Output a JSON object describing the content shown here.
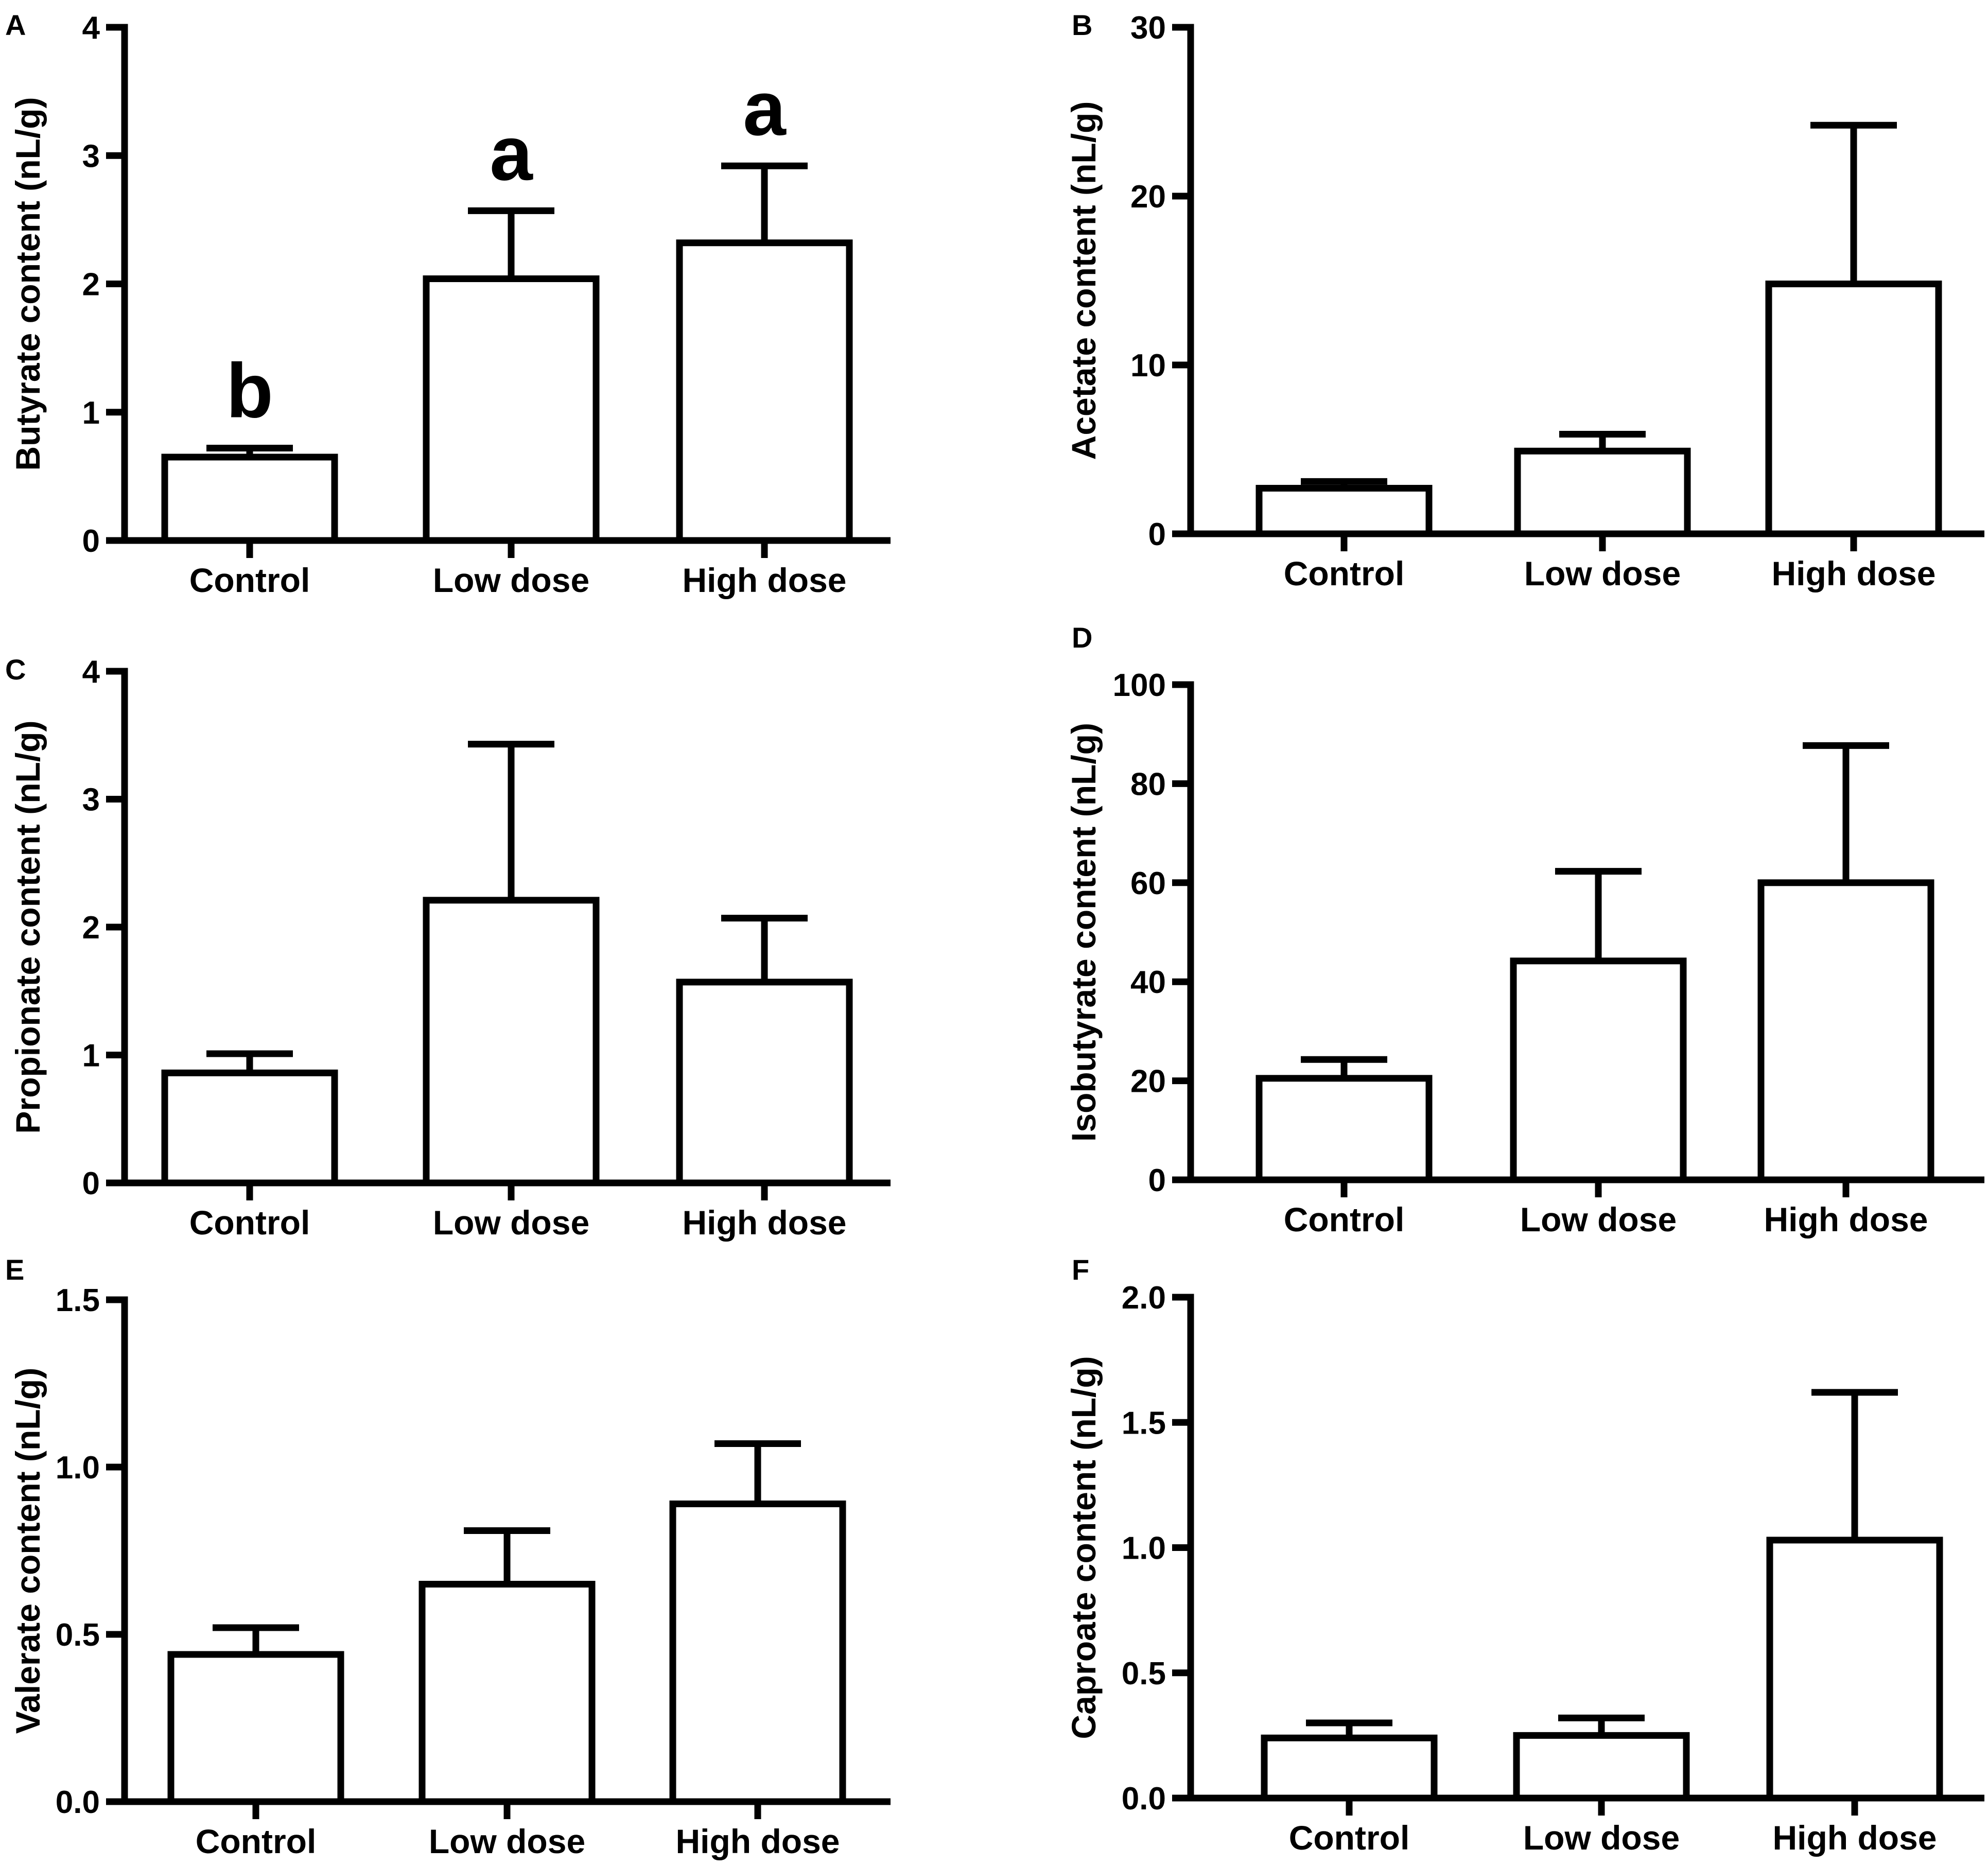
{
  "figure": {
    "panels": [
      "A",
      "B",
      "C",
      "D",
      "E",
      "F"
    ]
  },
  "chart_data": [
    {
      "panel": "A",
      "type": "bar",
      "categories": [
        "Control",
        "Low dose",
        "High dose"
      ],
      "values": [
        0.65,
        2.04,
        2.32
      ],
      "errors": [
        0.07,
        0.53,
        0.6
      ],
      "significance": [
        "b",
        "a",
        "a"
      ],
      "ylabel": "Butyrate content (nL/g)",
      "ylim": [
        0,
        4
      ],
      "yticks": [
        0,
        1,
        2,
        3,
        4
      ],
      "ytick_labels": [
        "0",
        "1",
        "2",
        "3",
        "4"
      ]
    },
    {
      "panel": "B",
      "type": "bar",
      "categories": [
        "Control",
        "Low dose",
        "High dose"
      ],
      "values": [
        2.7,
        4.9,
        14.8
      ],
      "errors": [
        0.4,
        1.0,
        9.4
      ],
      "ylabel": "Acetate content (nL/g)",
      "ylim": [
        0,
        30
      ],
      "yticks": [
        0,
        10,
        20,
        30
      ],
      "ytick_labels": [
        "0",
        "10",
        "20",
        "30"
      ]
    },
    {
      "panel": "C",
      "type": "bar",
      "categories": [
        "Control",
        "Low dose",
        "High dose"
      ],
      "values": [
        0.86,
        2.21,
        1.57
      ],
      "errors": [
        0.15,
        1.22,
        0.5
      ],
      "ylabel": "Propionate content (nL/g)",
      "ylim": [
        0,
        4
      ],
      "yticks": [
        0,
        1,
        2,
        3,
        4
      ],
      "ytick_labels": [
        "0",
        "1",
        "2",
        "3",
        "4"
      ]
    },
    {
      "panel": "D",
      "type": "bar",
      "categories": [
        "Control",
        "Low dose",
        "High dose"
      ],
      "values": [
        20.5,
        44.2,
        60.0
      ],
      "errors": [
        3.8,
        18.1,
        27.7
      ],
      "ylabel": "Isobutyrate content (nL/g)",
      "ylim": [
        0,
        100
      ],
      "yticks": [
        0,
        20,
        40,
        60,
        80,
        100
      ],
      "ytick_labels": [
        "0",
        "20",
        "40",
        "60",
        "80",
        "100"
      ]
    },
    {
      "panel": "E",
      "type": "bar",
      "categories": [
        "Control",
        "Low dose",
        "High dose"
      ],
      "values": [
        0.44,
        0.65,
        0.89
      ],
      "errors": [
        0.08,
        0.16,
        0.18
      ],
      "ylabel": "Valerate content (nL/g)",
      "ylim": [
        0,
        1.5
      ],
      "yticks": [
        0,
        0.5,
        1.0,
        1.5
      ],
      "ytick_labels": [
        "0.0",
        "0.5",
        "1.0",
        "1.5"
      ]
    },
    {
      "panel": "F",
      "type": "bar",
      "categories": [
        "Control",
        "Low dose",
        "High dose"
      ],
      "values": [
        0.24,
        0.25,
        1.03
      ],
      "errors": [
        0.06,
        0.07,
        0.59
      ],
      "ylabel": "Caproate content (nL/g)",
      "ylim": [
        0,
        2.0
      ],
      "yticks": [
        0,
        0.5,
        1.0,
        1.5,
        2.0
      ],
      "ytick_labels": [
        "0.0",
        "0.5",
        "1.0",
        "1.5",
        "2.0"
      ]
    }
  ]
}
